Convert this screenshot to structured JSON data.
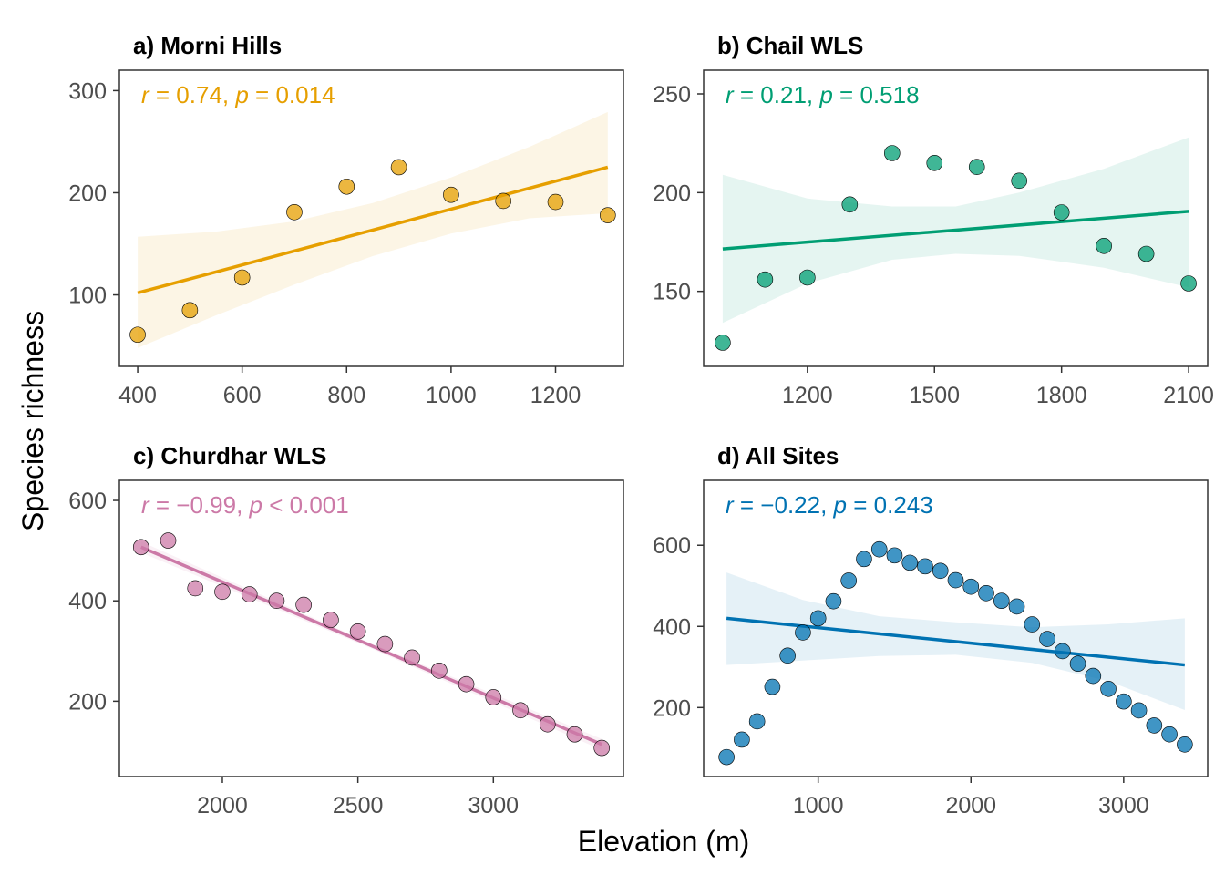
{
  "figure": {
    "xlabel": "Elevation (m)",
    "ylabel": "Species richness"
  },
  "chart_data": [
    {
      "type": "scatter",
      "title": "a) Morni Hills",
      "color": "#E69F00",
      "stat": {
        "r_symbol": "r",
        "r_eq": " = 0.74, ",
        "p_symbol": "p",
        "p_eq": " = 0.014"
      },
      "xlim": [
        365,
        1330
      ],
      "ylim": [
        30,
        320
      ],
      "xticks": [
        400,
        600,
        800,
        1000,
        1200
      ],
      "yticks": [
        100,
        200,
        300
      ],
      "x": [
        400,
        500,
        600,
        700,
        800,
        900,
        1000,
        1100,
        1200,
        1300
      ],
      "y": [
        61,
        85,
        117,
        181,
        206,
        225,
        198,
        192,
        191,
        178
      ],
      "fit": {
        "x": [
          400,
          1300
        ],
        "y": [
          102,
          225
        ]
      },
      "band": {
        "x": [
          400,
          550,
          700,
          850,
          1000,
          1150,
          1300
        ],
        "lower": [
          48,
          80,
          110,
          138,
          160,
          175,
          180
        ],
        "upper": [
          157,
          162,
          172,
          190,
          215,
          245,
          279
        ]
      }
    },
    {
      "type": "scatter",
      "title": "b) Chail WLS",
      "color": "#009E73",
      "stat": {
        "r_symbol": "r",
        "r_eq": " = 0.21, ",
        "p_symbol": "p",
        "p_eq": " = 0.518"
      },
      "xlim": [
        955,
        2145
      ],
      "ylim": [
        112,
        262
      ],
      "xticks": [
        1200,
        1500,
        1800,
        2100
      ],
      "yticks": [
        150,
        200,
        250
      ],
      "x": [
        1000,
        1100,
        1200,
        1300,
        1400,
        1500,
        1600,
        1700,
        1800,
        1900,
        2000,
        2100
      ],
      "y": [
        124,
        156,
        157,
        194,
        220,
        215,
        213,
        206,
        190,
        173,
        169,
        154
      ],
      "fit": {
        "x": [
          1000,
          2100
        ],
        "y": [
          171.5,
          190.5
        ]
      },
      "band": {
        "x": [
          1000,
          1200,
          1400,
          1550,
          1700,
          1900,
          2100
        ],
        "lower": [
          134,
          154,
          166,
          169,
          168,
          162,
          152
        ],
        "upper": [
          209,
          197,
          193,
          193,
          200,
          212,
          228
        ]
      }
    },
    {
      "type": "scatter",
      "title": "c) Churdhar WLS",
      "color": "#CC79A7",
      "stat": {
        "r_symbol": "r",
        "r_eq": " = −0.99, ",
        "p_symbol": "p",
        "p_eq": " < 0.001"
      },
      "xlim": [
        1620,
        3480
      ],
      "ylim": [
        50,
        640
      ],
      "xticks": [
        2000,
        2500,
        3000
      ],
      "yticks": [
        200,
        400,
        600
      ],
      "x": [
        1700,
        1800,
        1900,
        2000,
        2100,
        2200,
        2300,
        2400,
        2500,
        2600,
        2700,
        2800,
        2900,
        3000,
        3100,
        3200,
        3300,
        3400
      ],
      "y": [
        507,
        520,
        425,
        418,
        413,
        400,
        392,
        362,
        339,
        314,
        287,
        261,
        234,
        208,
        182,
        154,
        134,
        107
      ],
      "fit": {
        "x": [
          1700,
          3400
        ],
        "y": [
          507,
          114
        ]
      },
      "band": {
        "x": [
          1700,
          2550,
          3400
        ],
        "lower": [
          496,
          305,
          103
        ],
        "upper": [
          518,
          315,
          125
        ]
      }
    },
    {
      "type": "scatter",
      "title": "d) All Sites",
      "color": "#0072B2",
      "stat": {
        "r_symbol": "r",
        "r_eq": " = −0.22, ",
        "p_symbol": "p",
        "p_eq": " = 0.243"
      },
      "xlim": [
        250,
        3550
      ],
      "ylim": [
        30,
        760
      ],
      "xticks": [
        1000,
        2000,
        3000
      ],
      "yticks": [
        200,
        400,
        600
      ],
      "x": [
        400,
        500,
        600,
        700,
        800,
        900,
        1000,
        1100,
        1200,
        1300,
        1400,
        1500,
        1600,
        1700,
        1800,
        1900,
        2000,
        2100,
        2200,
        2300,
        2400,
        2500,
        2600,
        2700,
        2800,
        2900,
        3000,
        3100,
        3200,
        3300,
        3400
      ],
      "y": [
        78,
        121,
        166,
        251,
        328,
        385,
        420,
        462,
        513,
        566,
        590,
        575,
        557,
        548,
        537,
        514,
        498,
        482,
        463,
        449,
        405,
        369,
        339,
        308,
        278,
        246,
        215,
        193,
        156,
        134,
        109
      ],
      "fit": {
        "x": [
          400,
          3400
        ],
        "y": [
          420,
          305
        ]
      },
      "band": {
        "x": [
          400,
          900,
          1400,
          1900,
          2400,
          2900,
          3400
        ],
        "lower": [
          305,
          316,
          327,
          330,
          310,
          265,
          194
        ],
        "upper": [
          533,
          465,
          425,
          410,
          398,
          405,
          420
        ]
      }
    }
  ]
}
